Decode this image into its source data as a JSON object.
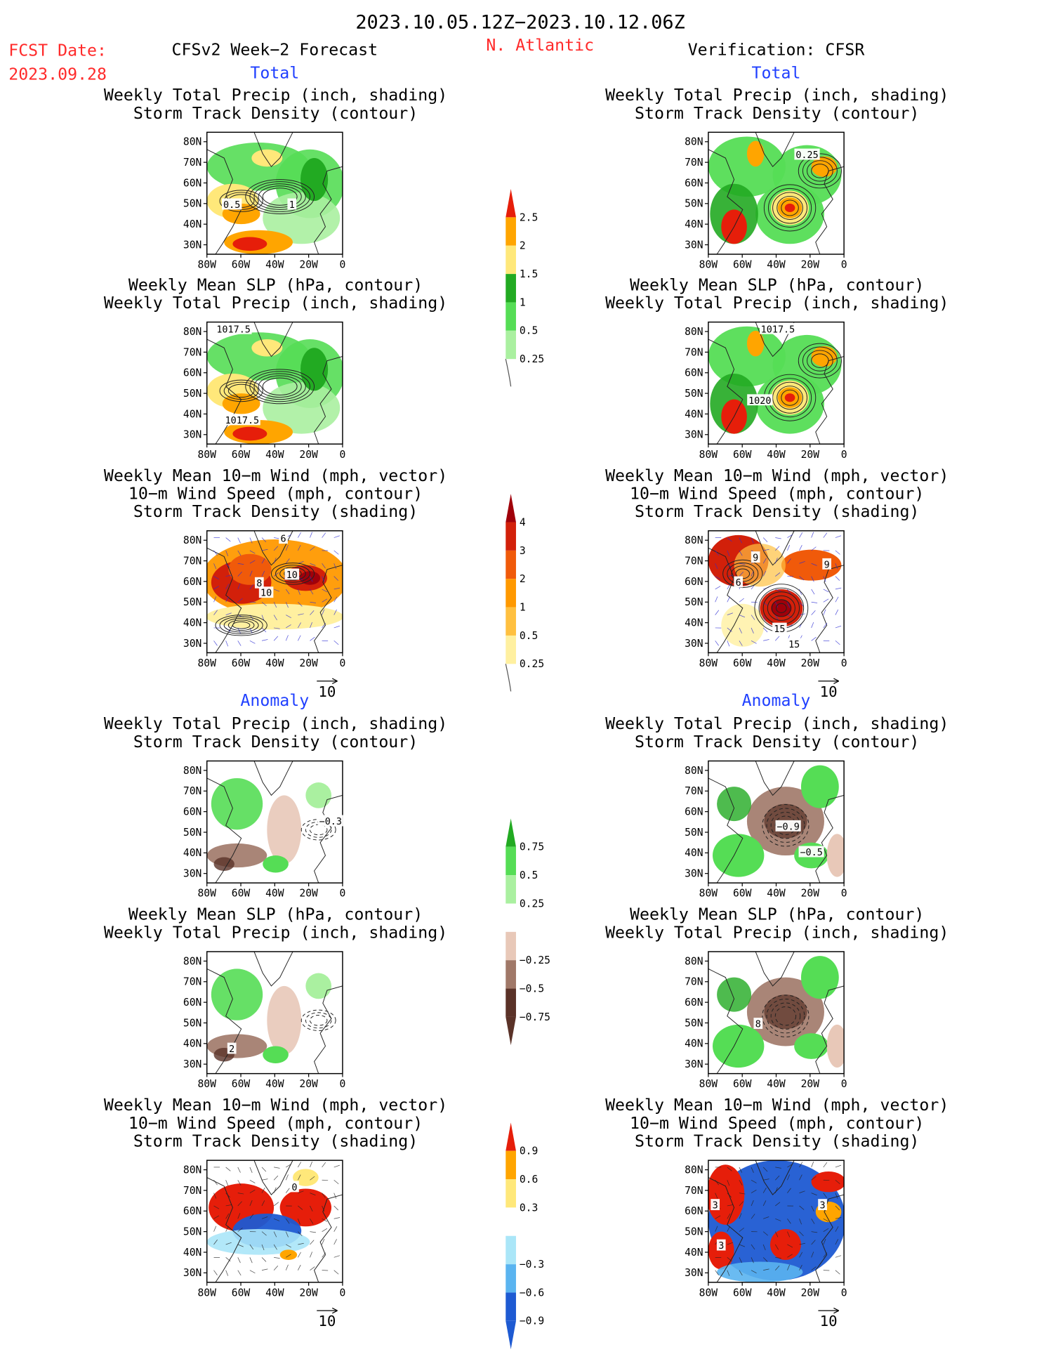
{
  "header": {
    "date_range": "2023.10.05.12Z−2023.10.12.06Z",
    "fcst_date_label": "FCST Date:",
    "fcst_date_value": "2023.09.28",
    "forecast_title": "CFSv2 Week−2 Forecast",
    "region": "N. Atlantic",
    "verification_title": "Verification: CFSR"
  },
  "section_labels": {
    "total": "Total",
    "anomaly": "Anomaly"
  },
  "panel_titles": {
    "precip_storm": [
      "Weekly Total Precip (inch, shading)",
      "Storm Track Density (contour)"
    ],
    "slp_precip": [
      "Weekly Mean SLP (hPa, contour)",
      "Weekly Total Precip (inch, shading)"
    ],
    "wind_storm": [
      "Weekly Mean 10−m Wind (mph, vector)",
      "10−m Wind Speed (mph, contour)",
      "Storm Track Density (shading)"
    ]
  },
  "axes": {
    "lat_ticks": [
      "80N",
      "70N",
      "60N",
      "50N",
      "40N",
      "30N"
    ],
    "lon_ticks": [
      "80W",
      "60W",
      "40W",
      "20W",
      "0"
    ]
  },
  "vector_reference": "10",
  "colorbars": {
    "total_precip": [
      "0.25",
      "0.5",
      "1",
      "1.5",
      "2",
      "2.5"
    ],
    "total_storm": [
      "0.25",
      "0.5",
      "1",
      "2",
      "3",
      "4"
    ],
    "anom_precip": [
      "−0.75",
      "−0.5",
      "−0.25",
      "0.25",
      "0.5",
      "0.75"
    ],
    "anom_storm": [
      "−0.9",
      "−0.6",
      "−0.3",
      "0.3",
      "0.6",
      "0.9"
    ]
  },
  "contour_labels": {
    "f_total_precip": [
      "0.5",
      "1"
    ],
    "v_total_precip": [
      "0.25"
    ],
    "f_total_slp": [
      "1017.5",
      "1017.5"
    ],
    "v_total_slp": [
      "1017.5",
      "1020"
    ],
    "f_total_wind": [
      "6",
      "8",
      "10",
      "10"
    ],
    "v_total_wind": [
      "9",
      "6",
      "9",
      "15",
      "15"
    ],
    "f_anom_precip": [
      "−0.3"
    ],
    "v_anom_precip": [
      "−0.9",
      "−0.5"
    ],
    "f_anom_slp": [
      "2"
    ],
    "v_anom_slp": [
      "8"
    ],
    "f_anom_wind": [
      "0"
    ],
    "v_anom_wind": [
      "3",
      "3",
      "3"
    ]
  },
  "colors": {
    "title_red": "#ff2a2a",
    "title_blue": "#1f3fff",
    "precip_scale": [
      "#aaf0a0",
      "#55dd55",
      "#22aa22",
      "#ffe87a",
      "#ffa500",
      "#e61e0a"
    ],
    "storm_scale": [
      "#fff0a0",
      "#ffc040",
      "#ff9900",
      "#f05a0a",
      "#d2200a",
      "#a0000a"
    ],
    "anom_precip_scale": [
      "#5a3228",
      "#a07868",
      "#e8c8b8",
      "#aaf0a0",
      "#55dd55",
      "#22aa22"
    ],
    "anom_storm_scale": [
      "#1e5ad2",
      "#5ab4f0",
      "#aae6f8",
      "#ffe87a",
      "#ffa500",
      "#e61e0a"
    ]
  }
}
